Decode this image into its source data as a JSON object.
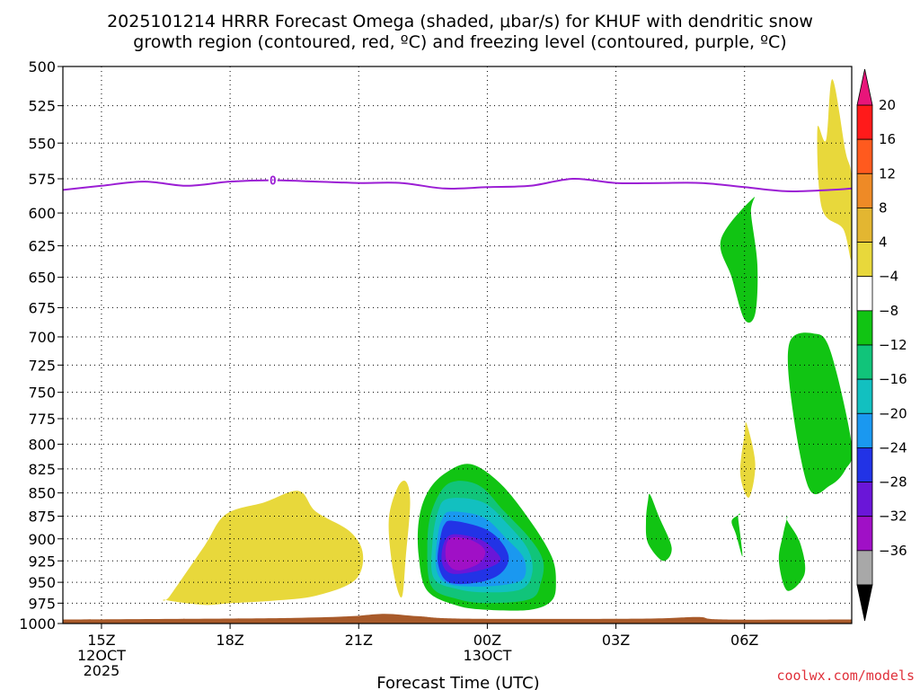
{
  "chart_data": {
    "type": "heatmap",
    "title_line1": "2025101214 HRRR Forecast Omega (shaded, μbar/s) for KHUF with dendritic snow",
    "title_line2": "growth region (contoured, red, ºC) and freezing level (contoured, purple, ºC)",
    "xlabel": "Forecast Time (UTC)",
    "x_range_hours": [
      -0.9,
      17.5
    ],
    "x_ticks": [
      {
        "h": 0,
        "l1": "15Z",
        "l2": "12OCT",
        "l3": "2025"
      },
      {
        "h": 3,
        "l1": "18Z",
        "l2": "",
        "l3": ""
      },
      {
        "h": 6,
        "l1": "21Z",
        "l2": "",
        "l3": ""
      },
      {
        "h": 9,
        "l1": "00Z",
        "l2": "13OCT",
        "l3": ""
      },
      {
        "h": 12,
        "l1": "03Z",
        "l2": "",
        "l3": ""
      },
      {
        "h": 15,
        "l1": "06Z",
        "l2": "",
        "l3": ""
      }
    ],
    "y_ticks": [
      "500",
      "525",
      "550",
      "575",
      "600",
      "625",
      "650",
      "675",
      "700",
      "725",
      "750",
      "775",
      "800",
      "825",
      "850",
      "875",
      "900",
      "925",
      "950",
      "975",
      "1000"
    ],
    "y_log": true,
    "colorbar": {
      "labels": [
        "20",
        "16",
        "12",
        "8",
        "4",
        "−4",
        "−8",
        "−12",
        "−16",
        "−20",
        "−24",
        "−28",
        "−32",
        "−36"
      ],
      "colors": [
        "#ff1a1a",
        "#ff5a1e",
        "#ee8a26",
        "#e3b631",
        "#e8d83b",
        "#ffffff",
        "#11c413",
        "#11c47a",
        "#12c0c0",
        "#1a98f0",
        "#2233e6",
        "#6a16d8",
        "#a010c6",
        "#a8a8a8"
      ],
      "top_arrow": "#e8157a",
      "bottom_arrow": "#000000"
    },
    "freezing_level": {
      "color": "#9b1ed4",
      "label": "0",
      "points": [
        [
          -0.9,
          583
        ],
        [
          0,
          580
        ],
        [
          1,
          577
        ],
        [
          2,
          580
        ],
        [
          3,
          577
        ],
        [
          4,
          576
        ],
        [
          5,
          577
        ],
        [
          6,
          578
        ],
        [
          7,
          578
        ],
        [
          8,
          582
        ],
        [
          9,
          581
        ],
        [
          10,
          580
        ],
        [
          11,
          575
        ],
        [
          12,
          578
        ],
        [
          13,
          578
        ],
        [
          14,
          578
        ],
        [
          15,
          581
        ],
        [
          16,
          584
        ],
        [
          17,
          583
        ],
        [
          17.5,
          582
        ]
      ]
    },
    "omega_regions": [
      {
        "level": "+4",
        "color": "#e8d83b",
        "polys": [
          [
            [
              1.6,
              966
            ],
            [
              2.4,
              908
            ],
            [
              2.9,
              873
            ],
            [
              3.8,
              860
            ],
            [
              4.6,
              848
            ],
            [
              5.0,
              870
            ],
            [
              5.8,
              892
            ],
            [
              6.1,
              918
            ],
            [
              5.9,
              948
            ],
            [
              5.0,
              966
            ],
            [
              4.0,
              972
            ],
            [
              3.0,
              975
            ],
            [
              2.4,
              977
            ],
            [
              1.5,
              971
            ]
          ],
          [
            [
              6.9,
              845
            ],
            [
              6.7,
              880
            ],
            [
              6.8,
              935
            ],
            [
              7.0,
              968
            ],
            [
              7.1,
              920
            ],
            [
              7.2,
              860
            ],
            [
              7.1,
              838
            ]
          ],
          [
            [
              16.9,
              548
            ],
            [
              17.05,
              508
            ],
            [
              17.35,
              555
            ],
            [
              17.5,
              575
            ],
            [
              17.5,
              635
            ],
            [
              17.3,
              612
            ],
            [
              16.8,
              596
            ],
            [
              16.7,
              540
            ]
          ],
          [
            [
              15.0,
              790
            ],
            [
              15.05,
              780
            ],
            [
              15.25,
              820
            ],
            [
              15.1,
              855
            ],
            [
              14.9,
              830
            ]
          ]
        ]
      },
      {
        "level": "-4",
        "color": "#11c413",
        "polys": [
          [
            [
              8.0,
              830
            ],
            [
              8.6,
              820
            ],
            [
              9.3,
              840
            ],
            [
              10.0,
              880
            ],
            [
              10.5,
              920
            ],
            [
              10.6,
              950
            ],
            [
              10.5,
              972
            ],
            [
              10.0,
              983
            ],
            [
              9.0,
              983
            ],
            [
              8.3,
              978
            ],
            [
              7.6,
              960
            ],
            [
              7.4,
              920
            ],
            [
              7.4,
              880
            ],
            [
              7.6,
              850
            ]
          ],
          [
            [
              15.2,
              589
            ],
            [
              15.15,
              600
            ],
            [
              15.3,
              640
            ],
            [
              15.25,
              680
            ],
            [
              15.0,
              685
            ],
            [
              14.7,
              650
            ],
            [
              14.45,
              620
            ]
          ],
          [
            [
              16.6,
              697
            ],
            [
              17.0,
              712
            ],
            [
              17.5,
              800
            ],
            [
              17.35,
              826
            ],
            [
              17.0,
              842
            ],
            [
              16.5,
              845
            ],
            [
              16.1,
              760
            ],
            [
              16.05,
              705
            ]
          ],
          [
            [
              14.9,
              873
            ],
            [
              14.7,
              880
            ],
            [
              14.8,
              895
            ],
            [
              14.95,
              920
            ],
            [
              14.9,
              895
            ],
            [
              14.85,
              875
            ]
          ],
          [
            [
              12.8,
              852
            ],
            [
              13.0,
              875
            ],
            [
              13.3,
              910
            ],
            [
              13.1,
              925
            ],
            [
              12.75,
              905
            ],
            [
              12.7,
              880
            ],
            [
              12.75,
              858
            ]
          ],
          [
            [
              16.0,
              880
            ],
            [
              16.3,
              905
            ],
            [
              16.4,
              940
            ],
            [
              16.0,
              960
            ],
            [
              15.8,
              925
            ],
            [
              15.9,
              895
            ],
            [
              16.0,
              876
            ]
          ]
        ]
      },
      {
        "level": "-8",
        "color": "#11c47a",
        "polys": [
          [
            [
              8.1,
              840
            ],
            [
              8.8,
              842
            ],
            [
              9.4,
              870
            ],
            [
              10.0,
              900
            ],
            [
              10.3,
              925
            ],
            [
              10.25,
              950
            ],
            [
              10.0,
              970
            ],
            [
              9.0,
              975
            ],
            [
              8.3,
              970
            ],
            [
              7.7,
              955
            ],
            [
              7.6,
              910
            ],
            [
              7.7,
              870
            ]
          ]
        ]
      },
      {
        "level": "-12",
        "color": "#12c0c0",
        "polys": [
          [
            [
              8.1,
              856
            ],
            [
              8.9,
              860
            ],
            [
              9.5,
              885
            ],
            [
              9.95,
              912
            ],
            [
              10.05,
              938
            ],
            [
              9.8,
              958
            ],
            [
              9.0,
              962
            ],
            [
              8.3,
              958
            ],
            [
              7.75,
              945
            ],
            [
              7.72,
              905
            ],
            [
              7.85,
              870
            ]
          ]
        ]
      },
      {
        "level": "-16",
        "color": "#1a98f0",
        "polys": [
          [
            [
              8.15,
              870
            ],
            [
              8.9,
              876
            ],
            [
              9.45,
              900
            ],
            [
              9.85,
              922
            ],
            [
              9.85,
              945
            ],
            [
              9.4,
              953
            ],
            [
              8.6,
              955
            ],
            [
              8.0,
              950
            ],
            [
              7.8,
              930
            ],
            [
              7.85,
              895
            ],
            [
              7.95,
              878
            ]
          ]
        ]
      },
      {
        "level": "-20",
        "color": "#2233e6",
        "polys": [
          [
            [
              8.2,
              880
            ],
            [
              8.9,
              888
            ],
            [
              9.3,
              902
            ],
            [
              9.5,
              922
            ],
            [
              9.3,
              940
            ],
            [
              8.8,
              950
            ],
            [
              8.1,
              950
            ],
            [
              7.85,
              928
            ],
            [
              7.9,
              900
            ],
            [
              8.0,
              884
            ]
          ]
        ]
      },
      {
        "level": "-24",
        "color": "#6a16d8",
        "polys": [
          [
            [
              8.2,
              895
            ],
            [
              8.8,
              900
            ],
            [
              9.15,
              912
            ],
            [
              9.3,
              925
            ],
            [
              8.9,
              935
            ],
            [
              8.2,
              940
            ],
            [
              7.95,
              928
            ],
            [
              7.98,
              906
            ]
          ]
        ]
      },
      {
        "level": "-28",
        "color": "#a010c6",
        "polys": [
          [
            [
              8.25,
              898
            ],
            [
              8.7,
              903
            ],
            [
              8.95,
              914
            ],
            [
              8.8,
              928
            ],
            [
              8.3,
              936
            ],
            [
              8.05,
              925
            ],
            [
              8.05,
              905
            ]
          ]
        ]
      }
    ],
    "terrain": {
      "color": "#a85a2a",
      "points": [
        [
          -0.9,
          995
        ],
        [
          2.5,
          994
        ],
        [
          4.5,
          993
        ],
        [
          5.8,
          991
        ],
        [
          6.6,
          988
        ],
        [
          7.4,
          991
        ],
        [
          8.5,
          994
        ],
        [
          12.5,
          994
        ],
        [
          13.9,
          992
        ],
        [
          14.5,
          995
        ],
        [
          17.5,
          995
        ]
      ]
    }
  },
  "credit": "coolwx.com/models"
}
